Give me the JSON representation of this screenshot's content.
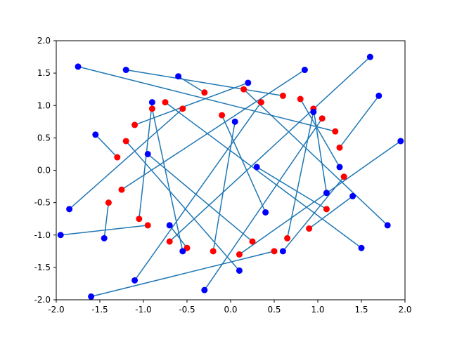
{
  "chart_data": {
    "type": "scatter",
    "title": "",
    "xlabel": "",
    "ylabel": "",
    "xlim": [
      -2.0,
      2.0
    ],
    "ylim": [
      -2.0,
      2.0
    ],
    "x_ticks": [
      "-2.0",
      "-1.5",
      "-1.0",
      "-0.5",
      "0.0",
      "0.5",
      "1.0",
      "1.5",
      "2.0"
    ],
    "y_ticks": [
      "-2.0",
      "-1.5",
      "-1.0",
      "-0.5",
      "0.0",
      "0.5",
      "1.0",
      "1.5",
      "2.0"
    ],
    "grid": false,
    "legend": "none",
    "series": [
      {
        "color": "#ff0000",
        "marker": "circle",
        "description_points": "targets arranged on a noisy ring, radius about 0.6 to 1.4",
        "x": [
          1.2,
          0.6,
          -0.3,
          -1.1,
          -1.25,
          -0.7,
          0.1,
          0.9,
          1.3,
          1.05,
          0.35,
          -0.55,
          -1.3,
          -1.05,
          -0.2,
          0.65,
          1.25,
          0.8,
          -0.1,
          -0.9,
          -1.4,
          -0.95,
          0.25,
          1.1,
          0.95,
          0.15,
          -0.75,
          -1.2,
          -0.5,
          0.5
        ],
        "y": [
          0.6,
          1.15,
          1.2,
          0.7,
          -0.3,
          -1.1,
          -1.3,
          -0.9,
          -0.1,
          0.8,
          1.05,
          0.95,
          0.2,
          -0.75,
          -1.25,
          -1.05,
          0.35,
          1.1,
          0.85,
          0.95,
          -0.5,
          -0.85,
          -1.1,
          -0.6,
          0.95,
          1.25,
          1.05,
          0.45,
          -1.2,
          -1.25
        ]
      },
      {
        "color": "#0000ff",
        "marker": "circle",
        "description_points": "predicted points scattered widely around the ring",
        "x": [
          -1.75,
          -1.2,
          -0.6,
          0.2,
          0.85,
          1.6,
          1.95,
          1.4,
          0.6,
          -0.3,
          -1.1,
          -1.85,
          -1.55,
          -0.9,
          0.05,
          0.95,
          1.7,
          1.25,
          0.4,
          -0.55,
          -1.45,
          -1.95,
          -0.95,
          0.3,
          1.1,
          1.8,
          1.5,
          0.1,
          -0.7,
          -1.6
        ],
        "y": [
          1.6,
          1.55,
          1.45,
          1.35,
          1.55,
          1.75,
          0.45,
          -0.4,
          -1.25,
          -1.85,
          -1.7,
          -0.6,
          0.55,
          1.05,
          0.75,
          0.9,
          1.15,
          0.05,
          -0.65,
          -1.25,
          -1.05,
          -1.0,
          0.25,
          0.05,
          -0.35,
          -0.85,
          -1.2,
          -1.55,
          -0.85,
          -1.95
        ]
      }
    ],
    "segments_color": "#1f77b4"
  }
}
